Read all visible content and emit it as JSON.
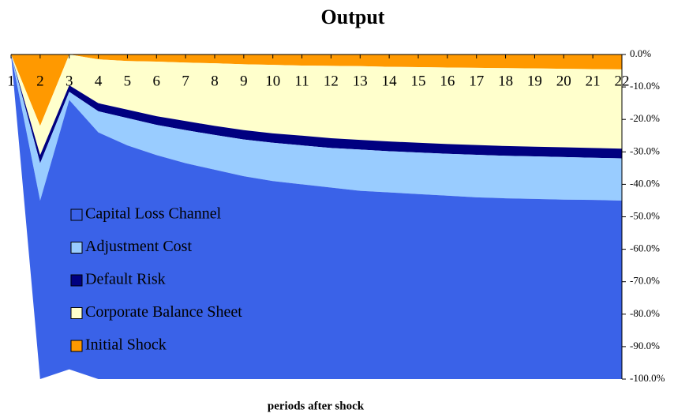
{
  "chart_data": {
    "type": "area",
    "stacked": true,
    "title": "Output",
    "x_label": "periods after shock",
    "categories": [
      "1",
      "2",
      "3",
      "4",
      "5",
      "6",
      "7",
      "8",
      "9",
      "10",
      "11",
      "12",
      "13",
      "14",
      "15",
      "16",
      "17",
      "18",
      "19",
      "20",
      "21",
      "22"
    ],
    "series": [
      {
        "name": "Capital Loss Channel",
        "color": "#3a62e8",
        "values": [
          0,
          -55,
          -83,
          -76,
          -72,
          -69,
          -66.5,
          -64.5,
          -62.5,
          -61,
          -60,
          -59,
          -58,
          -57.5,
          -57,
          -56.5,
          -56,
          -55.7,
          -55.5,
          -55.3,
          -55.2,
          -55
        ]
      },
      {
        "name": "Adjustment Cost",
        "color": "#99ccff",
        "values": [
          0,
          -11.5,
          -2.5,
          -6.5,
          -8.4,
          -9.3,
          -10.2,
          -10.7,
          -11.3,
          -11.8,
          -12,
          -12.2,
          -12.7,
          -12.7,
          -12.8,
          -12.9,
          -13.1,
          -13.1,
          -13.1,
          -13.1,
          -13,
          -13
        ]
      },
      {
        "name": "Default Risk",
        "color": "#000080",
        "values": [
          0,
          -2.5,
          -2,
          -2.5,
          -2.6,
          -2.7,
          -2.8,
          -2.8,
          -2.9,
          -2.9,
          -3,
          -3,
          -3,
          -3,
          -3,
          -3,
          -3,
          -3,
          -3,
          -3,
          -3,
          -3
        ]
      },
      {
        "name": "Corporate Balance Sheet",
        "color": "#ffffcc",
        "values": [
          0,
          -9,
          -9.5,
          -13.5,
          -15,
          -16.8,
          -18,
          -19.3,
          -20.3,
          -21.1,
          -21.6,
          -22.3,
          -22.7,
          -23,
          -23.3,
          -23.6,
          -23.8,
          -24,
          -24.1,
          -24.2,
          -24.3,
          -24.4
        ]
      },
      {
        "name": "Initial Shock",
        "color": "#ff9900",
        "values": [
          0,
          -22,
          0,
          -1.5,
          -2,
          -2.2,
          -2.5,
          -2.7,
          -3,
          -3.2,
          -3.4,
          -3.5,
          -3.6,
          -3.8,
          -3.9,
          -4,
          -4.1,
          -4.2,
          -4.3,
          -4.4,
          -4.5,
          -4.6
        ]
      }
    ],
    "ylim": [
      -100,
      0
    ],
    "yticks": [
      {
        "value": 0,
        "label": "0.0%"
      },
      {
        "value": -10,
        "label": "-10.0%"
      },
      {
        "value": -20,
        "label": "-20.0%"
      },
      {
        "value": -30,
        "label": "-30.0%"
      },
      {
        "value": -40,
        "label": "-40.0%"
      },
      {
        "value": -50,
        "label": "-50.0%"
      },
      {
        "value": -60,
        "label": "-60.0%"
      },
      {
        "value": -70,
        "label": "-70.0%"
      },
      {
        "value": -80,
        "label": "-80.0%"
      },
      {
        "value": -90,
        "label": "-90.0%"
      },
      {
        "value": -100,
        "label": "-100.0%"
      }
    ],
    "y_axis_side": "right",
    "legend": "left"
  }
}
